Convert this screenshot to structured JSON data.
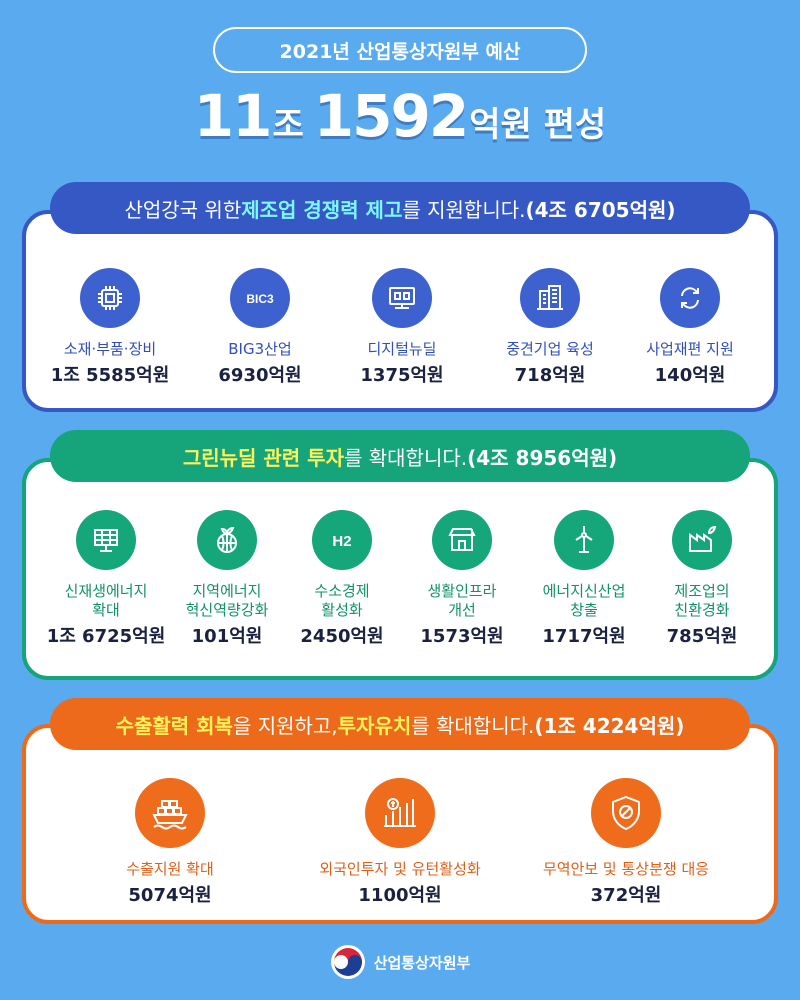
{
  "header": {
    "subtitle": "2021년 산업통상자원부 예산",
    "amount_a": "11",
    "unit_a": "조",
    "amount_b": "1592",
    "unit_b": "억원 편성"
  },
  "section1": {
    "pre": "산업강국 위한 ",
    "highlight": "제조업 경쟁력 제고",
    "post": "를 지원합니다. ",
    "total": "(4조 6705억원)",
    "items": [
      {
        "label": "소재·부품·장비",
        "value": "1조 5585억원",
        "icon": "chip-icon"
      },
      {
        "label": "BIG3산업",
        "value": "6930억원",
        "icon": "big3-icon",
        "icon_text": "BIC3"
      },
      {
        "label": "디지털뉴딜",
        "value": "1375억원",
        "icon": "digital-monitor-icon"
      },
      {
        "label": "중견기업 육성",
        "value": "718억원",
        "icon": "building-icon"
      },
      {
        "label": "사업재편 지원",
        "value": "140억원",
        "icon": "refresh-icon"
      }
    ]
  },
  "section2": {
    "highlight": "그린뉴딜 관련 투자",
    "post": "를 확대합니다. ",
    "total": "(4조 8956억원)",
    "items": [
      {
        "label": "신재생에너지\n확대",
        "value": "1조 6725억원",
        "icon": "solar-panel-icon"
      },
      {
        "label": "지역에너지\n혁신역량강화",
        "value": "101억원",
        "icon": "globe-sprout-icon"
      },
      {
        "label": "수소경제\n활성화",
        "value": "2450억원",
        "icon": "hydrogen-icon",
        "icon_text": "H2"
      },
      {
        "label": "생활인프라\n개선",
        "value": "1573억원",
        "icon": "store-plug-icon"
      },
      {
        "label": "에너지신산업\n창출",
        "value": "1717억원",
        "icon": "wind-turbine-icon"
      },
      {
        "label": "제조업의\n친환경화",
        "value": "785억원",
        "icon": "eco-factory-icon"
      }
    ]
  },
  "section3": {
    "highlight1": "수출활력 회복",
    "mid": "을 지원하고, ",
    "highlight2": "투자유치",
    "post": "를 확대합니다. ",
    "total": "(1조 4224억원)",
    "items": [
      {
        "label": "수출지원 확대",
        "value": "5074억원",
        "icon": "cargo-ship-icon"
      },
      {
        "label": "외국인투자 및 유턴활성화",
        "value": "1100억원",
        "icon": "investment-chart-icon"
      },
      {
        "label": "무역안보 및 통상분쟁 대응",
        "value": "372억원",
        "icon": "shield-icon"
      }
    ]
  },
  "footer": {
    "ministry": "산업통상자원부"
  },
  "colors": {
    "bg": "#5aaaf0",
    "blue": "#3558c4",
    "green": "#16a47a",
    "orange": "#ec6a1a"
  }
}
